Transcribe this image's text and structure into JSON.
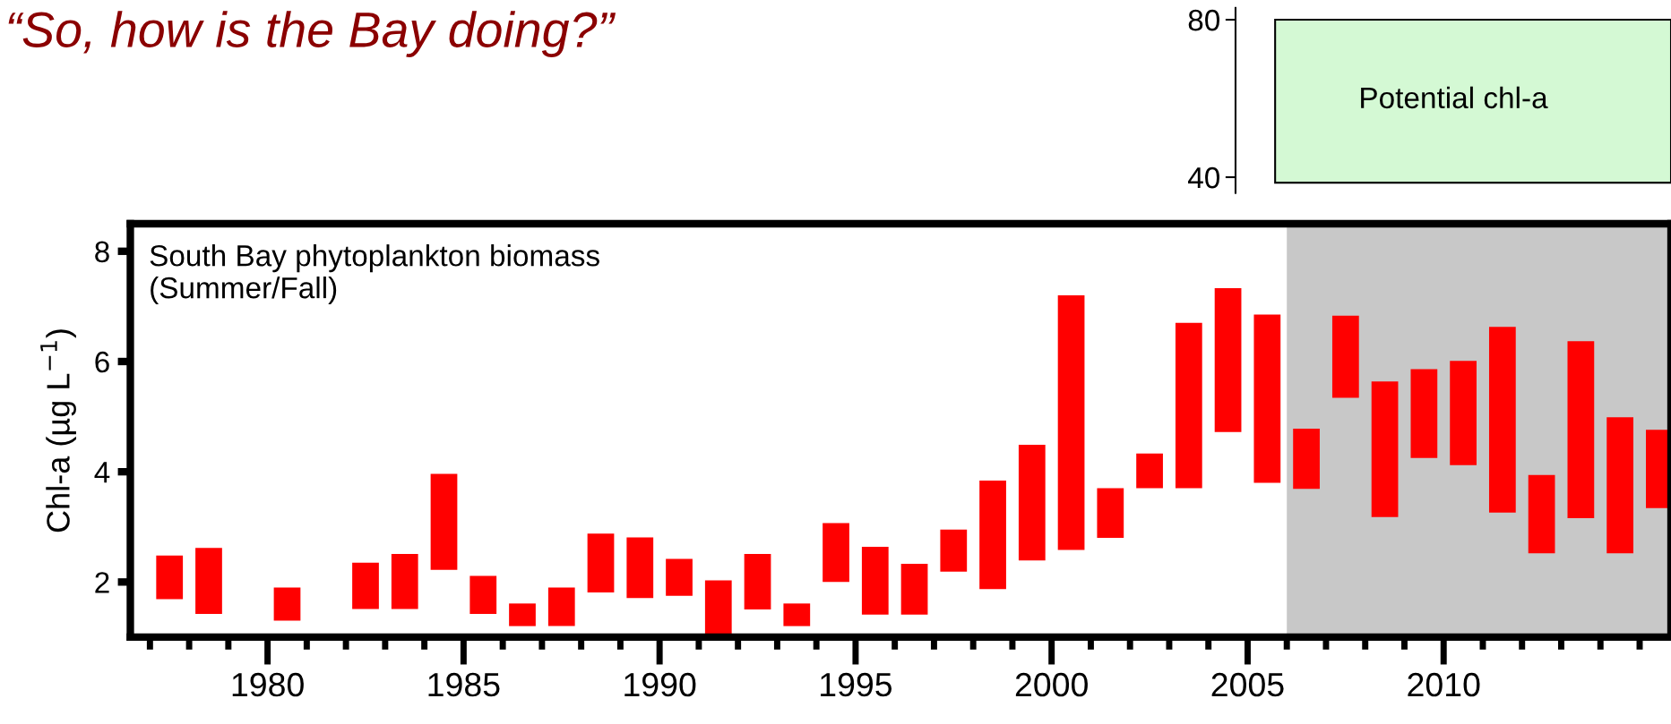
{
  "chart_data": [
    {
      "type": "bar",
      "title": "“So, how is the Bay doing?”",
      "ylabel": "Chl-a (µg L$^{−1}$)",
      "annotations": [
        "South Bay phytoplankton biomass\n(Summer/Fall)"
      ],
      "x": [
        1977.5,
        1978.5,
        1980.5,
        1982.5,
        1983.5,
        1984.5,
        1985.5,
        1986.5,
        1987.5,
        1988.5,
        1989.5,
        1990.5,
        1991.5,
        1992.5,
        1993.5,
        1994.5,
        1995.5,
        1996.5,
        1997.5,
        1998.5,
        1999.5,
        2000.5,
        2001.5,
        2002.5,
        2003.5,
        2004.5,
        2005.5,
        2006.5,
        2007.5,
        2008.5,
        2009.5,
        2010.5,
        2011.5,
        2012.5,
        2013.5,
        2014.5,
        2015.5
      ],
      "base": [
        1.69,
        1.42,
        1.3,
        1.51,
        1.51,
        2.22,
        1.42,
        1.2,
        1.2,
        1.81,
        1.71,
        1.75,
        1.0,
        1.5,
        1.2,
        2.0,
        1.41,
        1.41,
        2.19,
        1.87,
        2.39,
        2.58,
        2.8,
        3.7,
        3.7,
        4.72,
        3.8,
        3.69,
        5.34,
        3.18,
        4.25,
        4.12,
        3.26,
        2.52,
        3.16,
        2.52,
        3.34
      ],
      "values": [
        0.79,
        1.2,
        0.6,
        0.84,
        1.0,
        1.74,
        0.69,
        0.41,
        0.7,
        1.07,
        1.1,
        0.67,
        1.03,
        1.01,
        0.41,
        1.07,
        1.23,
        0.92,
        0.76,
        1.97,
        2.1,
        4.62,
        0.9,
        0.63,
        3.0,
        2.61,
        3.05,
        1.09,
        1.49,
        2.46,
        1.61,
        1.89,
        3.37,
        1.42,
        3.21,
        2.47,
        1.42
      ],
      "color": "#ff0000",
      "xlim": [
        1976.5,
        2015.8
      ],
      "xticks": [
        {
          "value": 1977,
          "label": null
        },
        {
          "value": 1978,
          "label": null
        },
        {
          "value": 1979,
          "label": null
        },
        1980,
        {
          "value": 1981,
          "label": null
        },
        {
          "value": 1982,
          "label": null
        },
        {
          "value": 1983,
          "label": null
        },
        {
          "value": 1984,
          "label": null
        },
        1985,
        {
          "value": 1986,
          "label": null
        },
        {
          "value": 1987,
          "label": null
        },
        {
          "value": 1988,
          "label": null
        },
        {
          "value": 1989,
          "label": null
        },
        1990,
        {
          "value": 1991,
          "label": null
        },
        {
          "value": 1992,
          "label": null
        },
        {
          "value": 1993,
          "label": null
        },
        {
          "value": 1994,
          "label": null
        },
        1995,
        {
          "value": 1996,
          "label": null
        },
        {
          "value": 1997,
          "label": null
        },
        {
          "value": 1998,
          "label": null
        },
        {
          "value": 1999,
          "label": null
        },
        2000,
        {
          "value": 2001,
          "label": null
        },
        {
          "value": 2002,
          "label": null
        },
        {
          "value": 2003,
          "label": null
        },
        {
          "value": 2004,
          "label": null
        },
        2005,
        {
          "value": 2006,
          "label": null
        },
        {
          "value": 2007,
          "label": null
        },
        {
          "value": 2008,
          "label": null
        },
        {
          "value": 2009,
          "label": null
        },
        2010,
        {
          "value": 2011,
          "label": null
        },
        {
          "value": 2012,
          "label": null
        },
        {
          "value": 2013,
          "label": null
        },
        {
          "value": 2014,
          "label": null
        },
        {
          "value": 2015,
          "label": null
        }
      ],
      "ylim": [
        1.0,
        8.5
      ],
      "yticks": [
        2,
        4,
        6,
        8
      ],
      "bands": [
        {
          "axis": "x",
          "from": 2006,
          "to": 2015.8,
          "color": "#c8c8c8"
        }
      ],
      "grid": false,
      "legend": false
    },
    {
      "type": "bar",
      "categories": [
        null
      ],
      "base": [
        38.6
      ],
      "values": [
        41.4
      ],
      "colors": [
        "#d4f9d4"
      ],
      "ylim": [
        36,
        83
      ],
      "yticks": [
        40,
        80
      ],
      "annotations": [
        "Potential chl-a"
      ]
    }
  ]
}
